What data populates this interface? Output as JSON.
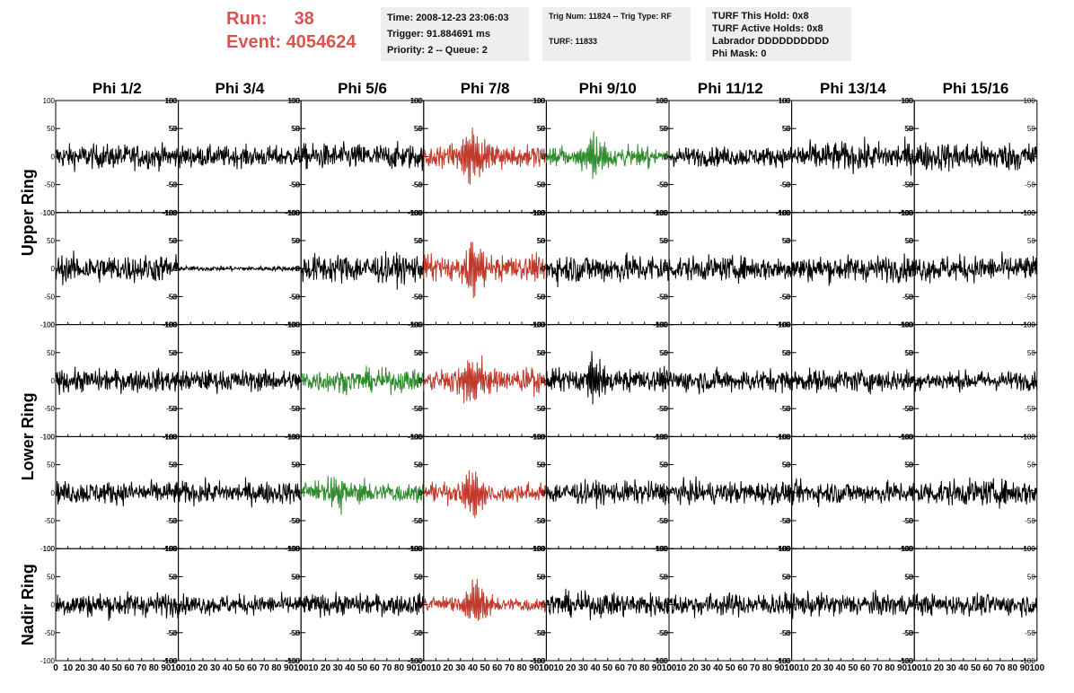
{
  "header": {
    "run_label": "Run:",
    "run_value": "38",
    "event_label": "Event:",
    "event_value": "4054624",
    "time": "Time: 2008-12-23 23:06:03",
    "trigger": "Trigger: 91.884691 ms",
    "priority": "Priority: 2 -- Queue: 2",
    "trig_num": "Trig Num: 11824 -- Trig Type: RF",
    "turf": "TURF: 11833",
    "turf_this_hold": "TURF This Hold: 0x8",
    "turf_active_holds": "TURF Active Holds: 0x8",
    "labrador": "Labrador DDDDDDDDDD",
    "phi_mask": "Phi Mask: 0"
  },
  "colors": {
    "normal": "#000000",
    "triggered": "#c0392b",
    "highlight": "#2e8b2e",
    "run_text": "#d9534f"
  },
  "chart_data": {
    "type": "line",
    "columns": [
      "Phi 1/2",
      "Phi 3/4",
      "Phi 5/6",
      "Phi 7/8",
      "Phi 9/10",
      "Phi 11/12",
      "Phi 13/14",
      "Phi 15/16"
    ],
    "ring_labels": [
      {
        "label": "Upper Ring",
        "rows": [
          0,
          1
        ]
      },
      {
        "label": "Lower Ring",
        "rows": [
          2,
          3
        ]
      },
      {
        "label": "Nadir Ring",
        "rows": [
          4,
          4
        ]
      }
    ],
    "xlim": [
      0,
      100
    ],
    "ylim": [
      -100,
      100
    ],
    "x_ticks": [
      0,
      10,
      20,
      30,
      40,
      50,
      60,
      70,
      80,
      90,
      100
    ],
    "y_ticks": [
      -100,
      -50,
      0,
      50,
      100
    ],
    "panels": [
      [
        {
          "color": "normal",
          "amp": 15,
          "burst": 0
        },
        {
          "color": "normal",
          "amp": 13,
          "burst": 0
        },
        {
          "color": "normal",
          "amp": 16,
          "burst": 0
        },
        {
          "color": "triggered",
          "amp": 14,
          "burst": 38,
          "peak_x": 40
        },
        {
          "color": "highlight",
          "amp": 12,
          "burst": 30,
          "peak_x": 40
        },
        {
          "color": "normal",
          "amp": 12,
          "burst": 0
        },
        {
          "color": "normal",
          "amp": 18,
          "burst": 0
        },
        {
          "color": "normal",
          "amp": 18,
          "burst": 0
        }
      ],
      [
        {
          "color": "normal",
          "amp": 17,
          "burst": 0
        },
        {
          "color": "normal",
          "amp": 3,
          "burst": 0
        },
        {
          "color": "normal",
          "amp": 18,
          "burst": 0
        },
        {
          "color": "triggered",
          "amp": 16,
          "burst": 42,
          "peak_x": 40
        },
        {
          "color": "normal",
          "amp": 18,
          "burst": 0
        },
        {
          "color": "normal",
          "amp": 15,
          "burst": 0
        },
        {
          "color": "normal",
          "amp": 16,
          "burst": 0
        },
        {
          "color": "normal",
          "amp": 16,
          "burst": 0
        }
      ],
      [
        {
          "color": "normal",
          "amp": 14,
          "burst": 0
        },
        {
          "color": "normal",
          "amp": 13,
          "burst": 0
        },
        {
          "color": "highlight",
          "amp": 14,
          "burst": 0
        },
        {
          "color": "triggered",
          "amp": 14,
          "burst": 36,
          "peak_x": 40
        },
        {
          "color": "normal",
          "amp": 14,
          "burst": 26,
          "peak_x": 40
        },
        {
          "color": "normal",
          "amp": 14,
          "burst": 0
        },
        {
          "color": "normal",
          "amp": 14,
          "burst": 0
        },
        {
          "color": "normal",
          "amp": 12,
          "burst": 0
        }
      ],
      [
        {
          "color": "normal",
          "amp": 14,
          "burst": 0
        },
        {
          "color": "normal",
          "amp": 14,
          "burst": 0
        },
        {
          "color": "highlight",
          "amp": 14,
          "burst": 20,
          "peak_x": 28
        },
        {
          "color": "triggered",
          "amp": 13,
          "burst": 32,
          "peak_x": 40
        },
        {
          "color": "normal",
          "amp": 14,
          "burst": 0
        },
        {
          "color": "normal",
          "amp": 14,
          "burst": 0
        },
        {
          "color": "normal",
          "amp": 14,
          "burst": 0
        },
        {
          "color": "normal",
          "amp": 16,
          "burst": 0
        }
      ],
      [
        {
          "color": "normal",
          "amp": 15,
          "burst": 0
        },
        {
          "color": "normal",
          "amp": 12,
          "burst": 0
        },
        {
          "color": "normal",
          "amp": 13,
          "burst": 0
        },
        {
          "color": "triggered",
          "amp": 10,
          "burst": 32,
          "peak_x": 42
        },
        {
          "color": "normal",
          "amp": 15,
          "burst": 0
        },
        {
          "color": "normal",
          "amp": 14,
          "burst": 0
        },
        {
          "color": "normal",
          "amp": 14,
          "burst": 0
        },
        {
          "color": "normal",
          "amp": 13,
          "burst": 0
        }
      ]
    ]
  }
}
